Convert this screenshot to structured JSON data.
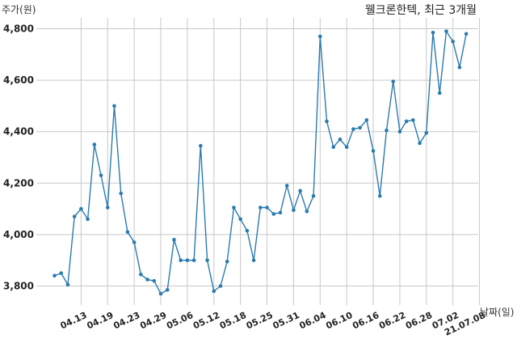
{
  "chart_data": {
    "type": "line",
    "title": "웰크론한텍, 최근 3개월",
    "ylabel": "주가(원)",
    "xlabel": "날짜(일)",
    "ylim": [
      3720,
      4840
    ],
    "yticks": [
      3800,
      4000,
      4200,
      4400,
      4600,
      4800
    ],
    "ytick_labels": [
      "3,800",
      "4,000",
      "4,200",
      "4,400",
      "4,600",
      "4,800"
    ],
    "grid": true,
    "colors": {
      "line": "#2b7bb0",
      "grid": "#c8c8c8"
    },
    "xtick_labels": [
      {
        "label": "04.13",
        "index": 4
      },
      {
        "label": "04.19",
        "index": 8
      },
      {
        "label": "04.23",
        "index": 12
      },
      {
        "label": "04.29",
        "index": 16
      },
      {
        "label": "05.06",
        "index": 20
      },
      {
        "label": "05.12",
        "index": 24
      },
      {
        "label": "05.18",
        "index": 28
      },
      {
        "label": "05.25",
        "index": 32
      },
      {
        "label": "05.31",
        "index": 36
      },
      {
        "label": "06.04",
        "index": 40
      },
      {
        "label": "06.10",
        "index": 44
      },
      {
        "label": "06.16",
        "index": 48
      },
      {
        "label": "06.22",
        "index": 52
      },
      {
        "label": "06.28",
        "index": 56
      },
      {
        "label": "07.02",
        "index": 60
      },
      {
        "label": "21.07.08",
        "index": 64
      }
    ],
    "values": [
      3840,
      3850,
      3805,
      4070,
      4100,
      4060,
      4350,
      4230,
      4105,
      4500,
      4160,
      4010,
      3970,
      3845,
      3825,
      3820,
      3770,
      3785,
      3980,
      3900,
      3900,
      3900,
      4345,
      3900,
      3780,
      3800,
      3895,
      4105,
      4060,
      4015,
      3900,
      4105,
      4105,
      4080,
      4085,
      4190,
      4095,
      4170,
      4090,
      4150,
      4770,
      4440,
      4340,
      4370,
      4340,
      4410,
      4415,
      4445,
      4325,
      4150,
      4405,
      4595,
      4400,
      4440,
      4445,
      4355,
      4395,
      4785,
      4550,
      4790,
      4750,
      4650,
      4780
    ]
  }
}
